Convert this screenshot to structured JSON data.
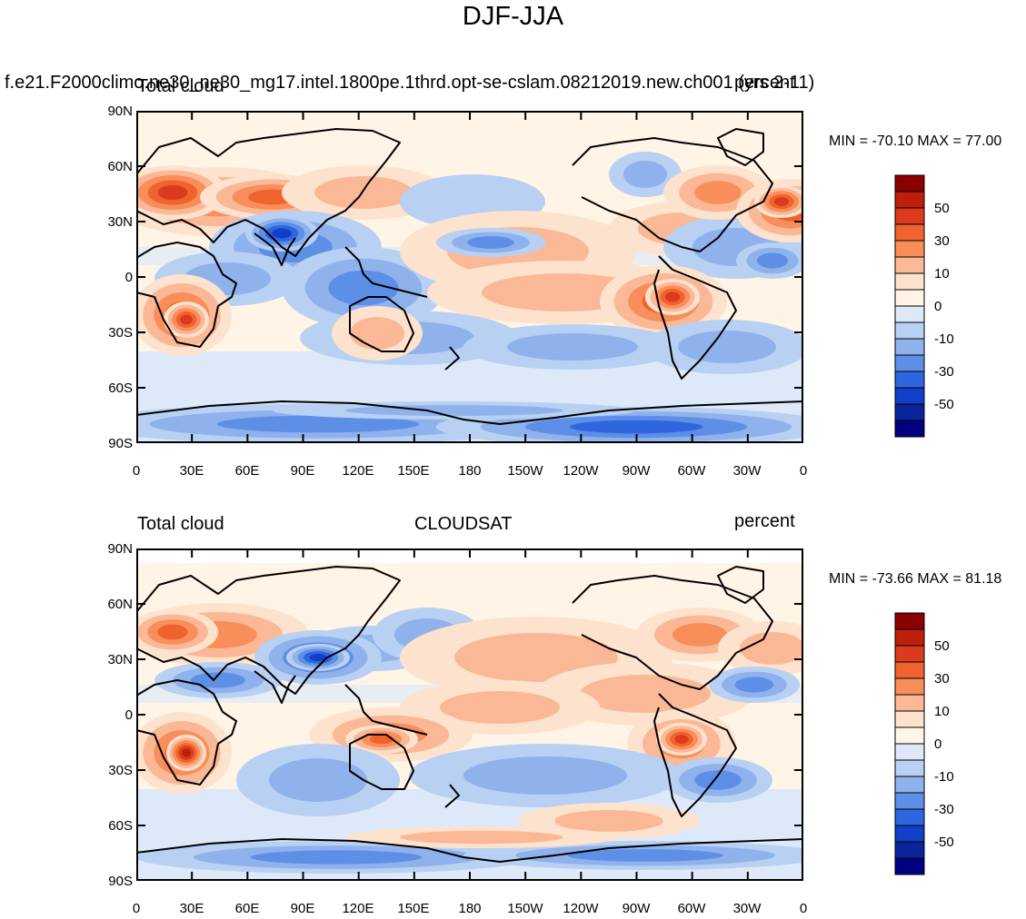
{
  "figure": {
    "title": "DJF-JJA",
    "units": "percent",
    "lat_ticks": [
      "90N",
      "60N",
      "30N",
      "0",
      "30S",
      "60S",
      "90S"
    ],
    "lon_ticks": [
      "0",
      "30E",
      "60E",
      "90E",
      "120E",
      "150E",
      "180",
      "150W",
      "120W",
      "90W",
      "60W",
      "30W",
      "0"
    ],
    "colorbar_levels": [
      -60,
      -50,
      -40,
      -30,
      -20,
      -10,
      -5,
      0,
      5,
      10,
      20,
      30,
      40,
      50,
      60
    ],
    "colorbar_labels": [
      "50",
      "30",
      "10",
      "0",
      "-10",
      "-30",
      "-50"
    ],
    "colorbar_colors": [
      "#8b0000",
      "#be1f0a",
      "#dc3a1c",
      "#f0632e",
      "#f88e5a",
      "#fbb896",
      "#fde2cd",
      "#fff4e6",
      "#dde9f8",
      "#b8d0f2",
      "#8fb2ec",
      "#5e8fe6",
      "#2f66e0",
      "#113fc8",
      "#0a249b",
      "#000080"
    ]
  },
  "panels": [
    {
      "id": "model",
      "left_title": "Total cloud",
      "case_name": "f.e21.F2000climo.ne30_ne30_mg17.intel.1800pe.1thrd.opt-se-cslam.08212019.new.ch001 (yrs 2-11)",
      "center_title": "",
      "right_title": "percent",
      "min_max": "MIN = -70.10 MAX =  77.00",
      "min": -70.1,
      "max": 77.0
    },
    {
      "id": "obs",
      "left_title": "Total cloud",
      "center_title": "CLOUDSAT",
      "right_title": "percent",
      "min_max": "MIN = -73.66 MAX =  81.18",
      "min": -73.66,
      "max": 81.18
    }
  ]
}
